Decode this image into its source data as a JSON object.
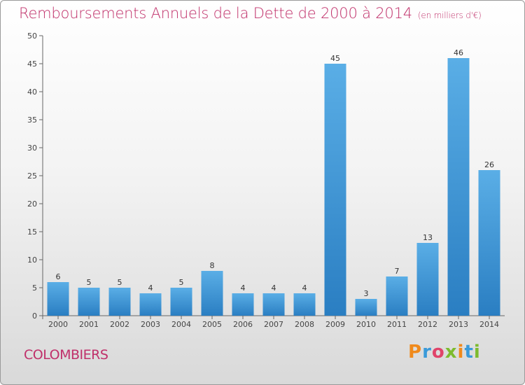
{
  "header": {
    "title": "Remboursements Annuels de la Dette de 2000 à 2014",
    "subtitle": "(en milliers d'€)"
  },
  "footer": {
    "commune": "COLOMBIERS",
    "logo_text": "Proxiti"
  },
  "colors": {
    "title": "#c0306a",
    "bar_light": "#5aaee6",
    "bar_dark": "#2a7ec2"
  },
  "chart_data": {
    "type": "bar",
    "categories": [
      "2000",
      "2001",
      "2002",
      "2003",
      "2004",
      "2005",
      "2006",
      "2007",
      "2008",
      "2009",
      "2010",
      "2011",
      "2012",
      "2013",
      "2014"
    ],
    "values": [
      6,
      5,
      5,
      4,
      5,
      8,
      4,
      4,
      4,
      45,
      3,
      7,
      13,
      46,
      26
    ],
    "ylim": [
      0,
      50
    ],
    "yticks": [
      0,
      5,
      10,
      15,
      20,
      25,
      30,
      35,
      40,
      45,
      50
    ],
    "grid": false,
    "legend": "none"
  }
}
